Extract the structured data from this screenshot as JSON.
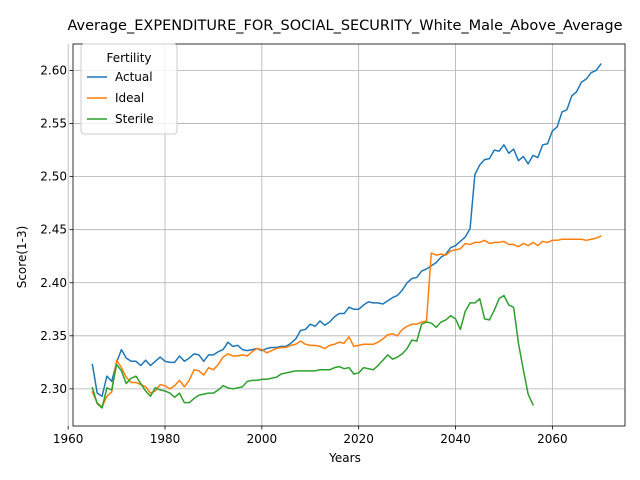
{
  "chart_data": {
    "type": "line",
    "title": "Average_EXPENDITURE_FOR_SOCIAL_SECURITY_White_Male_Above_Average",
    "xlabel": "Years",
    "ylabel": "Score(1-3)",
    "xlim": [
      1961,
      2075
    ],
    "ylim": [
      2.265,
      2.625
    ],
    "xticks": [
      1960,
      1980,
      2000,
      2020,
      2040,
      2060
    ],
    "yticks": [
      2.3,
      2.35,
      2.4,
      2.45,
      2.5,
      2.55,
      2.6
    ],
    "grid": true,
    "legend": {
      "title": "Fertility",
      "placement": "top-left"
    },
    "series": [
      {
        "name": "Actual",
        "color": "#1f77b4",
        "points": [
          [
            1965,
            2.323
          ],
          [
            1966,
            2.296
          ],
          [
            1967,
            2.293
          ],
          [
            1968,
            2.312
          ],
          [
            1969,
            2.307
          ],
          [
            1970,
            2.325
          ],
          [
            1971,
            2.337
          ],
          [
            1972,
            2.329
          ],
          [
            1973,
            2.326
          ],
          [
            1974,
            2.326
          ],
          [
            1975,
            2.322
          ],
          [
            1976,
            2.327
          ],
          [
            1977,
            2.322
          ],
          [
            1978,
            2.326
          ],
          [
            1979,
            2.33
          ],
          [
            1980,
            2.326
          ],
          [
            1981,
            2.325
          ],
          [
            1982,
            2.325
          ],
          [
            1983,
            2.331
          ],
          [
            1984,
            2.326
          ],
          [
            1985,
            2.329
          ],
          [
            1986,
            2.333
          ],
          [
            1987,
            2.332
          ],
          [
            1988,
            2.326
          ],
          [
            1989,
            2.332
          ],
          [
            1990,
            2.332
          ],
          [
            1991,
            2.335
          ],
          [
            1992,
            2.337
          ],
          [
            1993,
            2.344
          ],
          [
            1994,
            2.34
          ],
          [
            1995,
            2.341
          ],
          [
            1996,
            2.337
          ],
          [
            1997,
            2.336
          ],
          [
            1998,
            2.337
          ],
          [
            1999,
            2.338
          ],
          [
            2000,
            2.336
          ],
          [
            2001,
            2.338
          ],
          [
            2002,
            2.339
          ],
          [
            2003,
            2.339
          ],
          [
            2004,
            2.34
          ],
          [
            2005,
            2.34
          ],
          [
            2006,
            2.343
          ],
          [
            2007,
            2.347
          ],
          [
            2008,
            2.355
          ],
          [
            2009,
            2.356
          ],
          [
            2010,
            2.361
          ],
          [
            2011,
            2.359
          ],
          [
            2012,
            2.364
          ],
          [
            2013,
            2.36
          ],
          [
            2014,
            2.363
          ],
          [
            2015,
            2.368
          ],
          [
            2016,
            2.371
          ],
          [
            2017,
            2.371
          ],
          [
            2018,
            2.377
          ],
          [
            2019,
            2.375
          ],
          [
            2020,
            2.375
          ],
          [
            2021,
            2.379
          ],
          [
            2022,
            2.382
          ],
          [
            2023,
            2.381
          ],
          [
            2024,
            2.381
          ],
          [
            2025,
            2.38
          ],
          [
            2026,
            2.383
          ],
          [
            2027,
            2.386
          ],
          [
            2028,
            2.388
          ],
          [
            2029,
            2.393
          ],
          [
            2030,
            2.4
          ],
          [
            2031,
            2.404
          ],
          [
            2032,
            2.405
          ],
          [
            2033,
            2.411
          ],
          [
            2034,
            2.413
          ],
          [
            2035,
            2.416
          ],
          [
            2036,
            2.419
          ],
          [
            2037,
            2.424
          ],
          [
            2038,
            2.427
          ],
          [
            2039,
            2.433
          ],
          [
            2040,
            2.435
          ],
          [
            2041,
            2.439
          ],
          [
            2042,
            2.443
          ],
          [
            2043,
            2.451
          ],
          [
            2044,
            2.502
          ],
          [
            2045,
            2.511
          ],
          [
            2046,
            2.516
          ],
          [
            2047,
            2.517
          ],
          [
            2048,
            2.525
          ],
          [
            2049,
            2.524
          ],
          [
            2050,
            2.53
          ],
          [
            2051,
            2.522
          ],
          [
            2052,
            2.526
          ],
          [
            2053,
            2.515
          ],
          [
            2054,
            2.519
          ],
          [
            2055,
            2.512
          ],
          [
            2056,
            2.52
          ],
          [
            2057,
            2.518
          ],
          [
            2058,
            2.53
          ],
          [
            2059,
            2.531
          ],
          [
            2060,
            2.543
          ],
          [
            2061,
            2.547
          ],
          [
            2062,
            2.561
          ],
          [
            2063,
            2.563
          ],
          [
            2064,
            2.576
          ],
          [
            2065,
            2.58
          ],
          [
            2066,
            2.589
          ],
          [
            2067,
            2.592
          ],
          [
            2068,
            2.598
          ],
          [
            2069,
            2.6
          ],
          [
            2070,
            2.606
          ]
        ]
      },
      {
        "name": "Ideal",
        "color": "#ff7f0e",
        "points": [
          [
            1965,
            2.297
          ],
          [
            1966,
            2.287
          ],
          [
            1967,
            2.283
          ],
          [
            1968,
            2.293
          ],
          [
            1969,
            2.297
          ],
          [
            1970,
            2.327
          ],
          [
            1971,
            2.32
          ],
          [
            1972,
            2.311
          ],
          [
            1973,
            2.306
          ],
          [
            1974,
            2.306
          ],
          [
            1975,
            2.304
          ],
          [
            1976,
            2.302
          ],
          [
            1977,
            2.296
          ],
          [
            1978,
            2.298
          ],
          [
            1979,
            2.304
          ],
          [
            1980,
            2.303
          ],
          [
            1981,
            2.3
          ],
          [
            1982,
            2.303
          ],
          [
            1983,
            2.308
          ],
          [
            1984,
            2.302
          ],
          [
            1985,
            2.308
          ],
          [
            1986,
            2.318
          ],
          [
            1987,
            2.317
          ],
          [
            1988,
            2.313
          ],
          [
            1989,
            2.32
          ],
          [
            1990,
            2.318
          ],
          [
            1991,
            2.323
          ],
          [
            1992,
            2.33
          ],
          [
            1993,
            2.333
          ],
          [
            1994,
            2.331
          ],
          [
            1995,
            2.331
          ],
          [
            1996,
            2.332
          ],
          [
            1997,
            2.331
          ],
          [
            1998,
            2.335
          ],
          [
            1999,
            2.338
          ],
          [
            2000,
            2.337
          ],
          [
            2001,
            2.334
          ],
          [
            2002,
            2.336
          ],
          [
            2003,
            2.338
          ],
          [
            2004,
            2.339
          ],
          [
            2005,
            2.339
          ],
          [
            2006,
            2.341
          ],
          [
            2007,
            2.342
          ],
          [
            2008,
            2.345
          ],
          [
            2009,
            2.342
          ],
          [
            2010,
            2.341
          ],
          [
            2011,
            2.341
          ],
          [
            2012,
            2.34
          ],
          [
            2013,
            2.338
          ],
          [
            2014,
            2.341
          ],
          [
            2015,
            2.342
          ],
          [
            2016,
            2.344
          ],
          [
            2017,
            2.343
          ],
          [
            2018,
            2.349
          ],
          [
            2019,
            2.34
          ],
          [
            2020,
            2.341
          ],
          [
            2021,
            2.342
          ],
          [
            2022,
            2.342
          ],
          [
            2023,
            2.342
          ],
          [
            2024,
            2.344
          ],
          [
            2025,
            2.347
          ],
          [
            2026,
            2.351
          ],
          [
            2027,
            2.352
          ],
          [
            2028,
            2.35
          ],
          [
            2029,
            2.356
          ],
          [
            2030,
            2.359
          ],
          [
            2031,
            2.361
          ],
          [
            2032,
            2.361
          ],
          [
            2033,
            2.363
          ],
          [
            2034,
            2.364
          ],
          [
            2035,
            2.428
          ],
          [
            2036,
            2.426
          ],
          [
            2037,
            2.427
          ],
          [
            2038,
            2.426
          ],
          [
            2039,
            2.43
          ],
          [
            2040,
            2.431
          ],
          [
            2041,
            2.432
          ],
          [
            2042,
            2.437
          ],
          [
            2043,
            2.436
          ],
          [
            2044,
            2.438
          ],
          [
            2045,
            2.438
          ],
          [
            2046,
            2.44
          ],
          [
            2047,
            2.437
          ],
          [
            2048,
            2.438
          ],
          [
            2049,
            2.438
          ],
          [
            2050,
            2.439
          ],
          [
            2051,
            2.436
          ],
          [
            2052,
            2.436
          ],
          [
            2053,
            2.434
          ],
          [
            2054,
            2.437
          ],
          [
            2055,
            2.435
          ],
          [
            2056,
            2.438
          ],
          [
            2057,
            2.435
          ],
          [
            2058,
            2.439
          ],
          [
            2059,
            2.438
          ],
          [
            2060,
            2.44
          ],
          [
            2061,
            2.44
          ],
          [
            2062,
            2.441
          ],
          [
            2063,
            2.441
          ],
          [
            2064,
            2.441
          ],
          [
            2065,
            2.441
          ],
          [
            2066,
            2.441
          ],
          [
            2067,
            2.44
          ],
          [
            2068,
            2.441
          ],
          [
            2069,
            2.442
          ],
          [
            2070,
            2.444
          ]
        ]
      },
      {
        "name": "Sterile",
        "color": "#2ca02c",
        "points": [
          [
            1965,
            2.301
          ],
          [
            1966,
            2.286
          ],
          [
            1967,
            2.282
          ],
          [
            1968,
            2.301
          ],
          [
            1969,
            2.299
          ],
          [
            1970,
            2.323
          ],
          [
            1971,
            2.317
          ],
          [
            1972,
            2.305
          ],
          [
            1973,
            2.31
          ],
          [
            1974,
            2.312
          ],
          [
            1975,
            2.305
          ],
          [
            1976,
            2.298
          ],
          [
            1977,
            2.293
          ],
          [
            1978,
            2.301
          ],
          [
            1979,
            2.299
          ],
          [
            1980,
            2.298
          ],
          [
            1981,
            2.296
          ],
          [
            1982,
            2.292
          ],
          [
            1983,
            2.296
          ],
          [
            1984,
            2.287
          ],
          [
            1985,
            2.287
          ],
          [
            1986,
            2.291
          ],
          [
            1987,
            2.294
          ],
          [
            1988,
            2.295
          ],
          [
            1989,
            2.296
          ],
          [
            1990,
            2.296
          ],
          [
            1991,
            2.299
          ],
          [
            1992,
            2.303
          ],
          [
            1993,
            2.301
          ],
          [
            1994,
            2.3
          ],
          [
            1995,
            2.301
          ],
          [
            1996,
            2.302
          ],
          [
            1997,
            2.307
          ],
          [
            1998,
            2.308
          ],
          [
            1999,
            2.308
          ],
          [
            2000,
            2.309
          ],
          [
            2001,
            2.309
          ],
          [
            2002,
            2.31
          ],
          [
            2003,
            2.311
          ],
          [
            2004,
            2.314
          ],
          [
            2005,
            2.315
          ],
          [
            2006,
            2.316
          ],
          [
            2007,
            2.317
          ],
          [
            2008,
            2.317
          ],
          [
            2009,
            2.317
          ],
          [
            2010,
            2.317
          ],
          [
            2011,
            2.317
          ],
          [
            2012,
            2.318
          ],
          [
            2013,
            2.318
          ],
          [
            2014,
            2.318
          ],
          [
            2015,
            2.32
          ],
          [
            2016,
            2.321
          ],
          [
            2017,
            2.319
          ],
          [
            2018,
            2.32
          ],
          [
            2019,
            2.314
          ],
          [
            2020,
            2.315
          ],
          [
            2021,
            2.32
          ],
          [
            2022,
            2.319
          ],
          [
            2023,
            2.318
          ],
          [
            2024,
            2.322
          ],
          [
            2025,
            2.327
          ],
          [
            2026,
            2.332
          ],
          [
            2027,
            2.328
          ],
          [
            2028,
            2.33
          ],
          [
            2029,
            2.333
          ],
          [
            2030,
            2.338
          ],
          [
            2031,
            2.346
          ],
          [
            2032,
            2.345
          ],
          [
            2033,
            2.361
          ],
          [
            2034,
            2.363
          ],
          [
            2035,
            2.362
          ],
          [
            2036,
            2.358
          ],
          [
            2037,
            2.363
          ],
          [
            2038,
            2.365
          ],
          [
            2039,
            2.369
          ],
          [
            2040,
            2.366
          ],
          [
            2041,
            2.356
          ],
          [
            2042,
            2.373
          ],
          [
            2043,
            2.381
          ],
          [
            2044,
            2.381
          ],
          [
            2045,
            2.385
          ],
          [
            2046,
            2.366
          ],
          [
            2047,
            2.365
          ],
          [
            2048,
            2.374
          ],
          [
            2049,
            2.385
          ],
          [
            2050,
            2.388
          ],
          [
            2051,
            2.379
          ],
          [
            2052,
            2.377
          ],
          [
            2053,
            2.343
          ],
          [
            2054,
            2.318
          ],
          [
            2055,
            2.295
          ],
          [
            2056,
            2.285
          ]
        ]
      }
    ]
  }
}
